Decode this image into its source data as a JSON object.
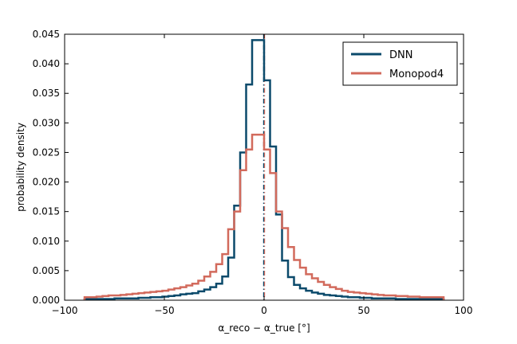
{
  "chart_data": {
    "type": "step",
    "xlabel": "α_reco − α_true  [°]",
    "ylabel": "probability density",
    "xlim": [
      -100,
      100
    ],
    "ylim": [
      0,
      0.045
    ],
    "xticks": [
      -100,
      -50,
      0,
      50,
      100
    ],
    "xtick_labels": [
      "−100",
      "−50",
      "0",
      "50",
      "100"
    ],
    "yticks": [
      0,
      0.005,
      0.01,
      0.015,
      0.02,
      0.025,
      0.03,
      0.035,
      0.04,
      0.045
    ],
    "ytick_labels": [
      "0.000",
      "0.005",
      "0.010",
      "0.015",
      "0.020",
      "0.025",
      "0.030",
      "0.035",
      "0.040",
      "0.045"
    ],
    "grid": false,
    "legend_position": "top-right",
    "bin_edges": [
      -90,
      -87,
      -84,
      -81,
      -78,
      -75,
      -72,
      -69,
      -66,
      -63,
      -60,
      -57,
      -54,
      -51,
      -48,
      -45,
      -42,
      -39,
      -36,
      -33,
      -30,
      -27,
      -24,
      -21,
      -18,
      -15,
      -12,
      -9,
      -6,
      -3,
      0,
      3,
      6,
      9,
      12,
      15,
      18,
      21,
      24,
      27,
      30,
      33,
      36,
      39,
      42,
      45,
      48,
      51,
      54,
      57,
      60,
      63,
      66,
      69,
      72,
      75,
      78,
      81,
      84,
      87,
      90
    ],
    "series": [
      {
        "name": "DNN",
        "color": "#0b4a6b",
        "values": [
          0.0002,
          0.0002,
          0.0002,
          0.0002,
          0.0002,
          0.0003,
          0.0003,
          0.0003,
          0.0003,
          0.0004,
          0.0004,
          0.0005,
          0.0005,
          0.0006,
          0.0007,
          0.0008,
          0.001,
          0.0011,
          0.0012,
          0.0015,
          0.0018,
          0.0022,
          0.0028,
          0.004,
          0.0072,
          0.016,
          0.025,
          0.0365,
          0.044,
          0.044,
          0.0372,
          0.026,
          0.0145,
          0.0067,
          0.0039,
          0.0026,
          0.002,
          0.0016,
          0.0013,
          0.0011,
          0.0009,
          0.0008,
          0.0007,
          0.0006,
          0.0005,
          0.0005,
          0.0004,
          0.0004,
          0.0003,
          0.0003,
          0.0003,
          0.0003,
          0.0002,
          0.0002,
          0.0002,
          0.0002,
          0.0002,
          0.0002,
          0.0002,
          0.0002
        ]
      },
      {
        "name": "Monopod4",
        "color": "#d26a5c",
        "values": [
          0.0005,
          0.0005,
          0.0006,
          0.0007,
          0.0008,
          0.0008,
          0.0009,
          0.001,
          0.0011,
          0.0012,
          0.0013,
          0.0014,
          0.0015,
          0.0016,
          0.0018,
          0.002,
          0.0022,
          0.0025,
          0.0028,
          0.0033,
          0.004,
          0.0048,
          0.0061,
          0.0078,
          0.012,
          0.015,
          0.022,
          0.0255,
          0.028,
          0.028,
          0.0255,
          0.0215,
          0.015,
          0.0122,
          0.009,
          0.0068,
          0.0055,
          0.0044,
          0.0037,
          0.0031,
          0.0026,
          0.0022,
          0.0019,
          0.0016,
          0.0014,
          0.0013,
          0.0012,
          0.0011,
          0.001,
          0.0009,
          0.0008,
          0.0008,
          0.0007,
          0.0007,
          0.0006,
          0.0006,
          0.0005,
          0.0005,
          0.0005,
          0.0005
        ]
      }
    ],
    "reference_lines": [
      {
        "x": 0,
        "color": "#0b4a6b",
        "style": "dashdot"
      },
      {
        "x": 0,
        "color": "#d26a5c",
        "style": "dashdot"
      }
    ]
  }
}
